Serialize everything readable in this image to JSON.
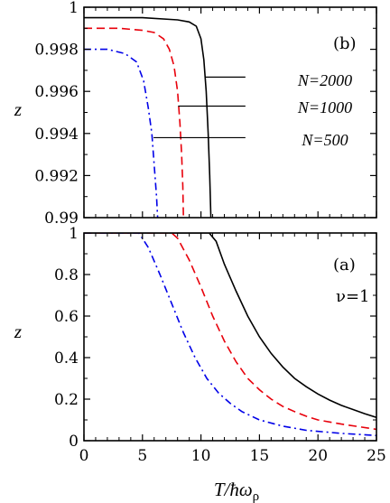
{
  "chart_data": [
    {
      "panel": "(b)",
      "type": "line",
      "xlim": [
        0,
        25
      ],
      "ylim": [
        0.99,
        1.0
      ],
      "xticks": [
        0,
        5,
        10,
        15,
        20,
        25
      ],
      "yticks": [
        0.99,
        0.992,
        0.994,
        0.996,
        0.998,
        1
      ],
      "ytick_labels": [
        "0.99",
        "0.992",
        "0.994",
        "0.996",
        "0.998",
        "1"
      ],
      "ylabel": "z",
      "legend_labels": [
        "N=2000",
        "N=1000",
        "N=500"
      ],
      "series": [
        {
          "name": "N=2000",
          "color": "#000000",
          "style": "solid",
          "points": [
            [
              0,
              0.9995
            ],
            [
              5,
              0.9995
            ],
            [
              8,
              0.9994
            ],
            [
              9,
              0.9993
            ],
            [
              9.6,
              0.9991
            ],
            [
              10.0,
              0.9985
            ],
            [
              10.25,
              0.9975
            ],
            [
              10.45,
              0.996
            ],
            [
              10.62,
              0.994
            ],
            [
              10.75,
              0.992
            ],
            [
              10.85,
              0.99
            ]
          ]
        },
        {
          "name": "N=1000",
          "color": "#e8000b",
          "style": "dashed",
          "points": [
            [
              0,
              0.999
            ],
            [
              3,
              0.999
            ],
            [
              5,
              0.9989
            ],
            [
              6,
              0.9988
            ],
            [
              6.8,
              0.9985
            ],
            [
              7.3,
              0.998
            ],
            [
              7.7,
              0.9972
            ],
            [
              8.0,
              0.996
            ],
            [
              8.2,
              0.9945
            ],
            [
              8.35,
              0.993
            ],
            [
              8.45,
              0.9915
            ],
            [
              8.5,
              0.99
            ]
          ]
        },
        {
          "name": "N=500",
          "color": "#0000e8",
          "style": "dashdot",
          "points": [
            [
              0,
              0.998
            ],
            [
              2,
              0.998
            ],
            [
              3.5,
              0.9978
            ],
            [
              4.5,
              0.9974
            ],
            [
              5.1,
              0.9965
            ],
            [
              5.5,
              0.9952
            ],
            [
              5.8,
              0.994
            ],
            [
              6.0,
              0.9925
            ],
            [
              6.2,
              0.991
            ],
            [
              6.3,
              0.99
            ]
          ]
        }
      ]
    },
    {
      "panel": "(a)",
      "annotation": "ν=1",
      "type": "line",
      "xlim": [
        0,
        25
      ],
      "ylim": [
        0,
        1.0
      ],
      "xticks": [
        0,
        5,
        10,
        15,
        20,
        25
      ],
      "yticks": [
        0,
        0.2,
        0.4,
        0.6,
        0.8,
        1
      ],
      "ytick_labels": [
        "0",
        "0.2",
        "0.4",
        "0.6",
        "0.8",
        "1"
      ],
      "ylabel": "z",
      "xlabel": "T/ħω",
      "xlabel_subscript": "ρ",
      "series": [
        {
          "name": "N=2000",
          "color": "#000000",
          "style": "solid",
          "points": [
            [
              0,
              1.0
            ],
            [
              10.7,
              1.0
            ],
            [
              11.3,
              0.96
            ],
            [
              12,
              0.85
            ],
            [
              13,
              0.72
            ],
            [
              14,
              0.6
            ],
            [
              15,
              0.5
            ],
            [
              16,
              0.42
            ],
            [
              17,
              0.355
            ],
            [
              18,
              0.3
            ],
            [
              19,
              0.26
            ],
            [
              20,
              0.225
            ],
            [
              21,
              0.195
            ],
            [
              22,
              0.17
            ],
            [
              23,
              0.15
            ],
            [
              24,
              0.13
            ],
            [
              25,
              0.112
            ]
          ]
        },
        {
          "name": "N=1000",
          "color": "#e8000b",
          "style": "dashed",
          "points": [
            [
              0,
              1.0
            ],
            [
              7.5,
              1.0
            ],
            [
              8,
              0.975
            ],
            [
              9,
              0.87
            ],
            [
              10,
              0.74
            ],
            [
              11,
              0.6
            ],
            [
              12,
              0.48
            ],
            [
              13,
              0.38
            ],
            [
              14,
              0.3
            ],
            [
              15,
              0.245
            ],
            [
              16,
              0.2
            ],
            [
              17,
              0.165
            ],
            [
              18,
              0.14
            ],
            [
              19,
              0.118
            ],
            [
              20,
              0.1
            ],
            [
              22,
              0.08
            ],
            [
              25,
              0.055
            ]
          ]
        },
        {
          "name": "N=500",
          "color": "#0000e8",
          "style": "dashdot",
          "points": [
            [
              0,
              1.0
            ],
            [
              4.7,
              1.0
            ],
            [
              5.5,
              0.93
            ],
            [
              6.5,
              0.8
            ],
            [
              7.5,
              0.66
            ],
            [
              8.5,
              0.52
            ],
            [
              9.5,
              0.4
            ],
            [
              10.5,
              0.3
            ],
            [
              11.5,
              0.23
            ],
            [
              12.5,
              0.18
            ],
            [
              13.5,
              0.14
            ],
            [
              15,
              0.1
            ],
            [
              17,
              0.07
            ],
            [
              19,
              0.05
            ],
            [
              22,
              0.035
            ],
            [
              25,
              0.025
            ]
          ]
        }
      ]
    }
  ]
}
